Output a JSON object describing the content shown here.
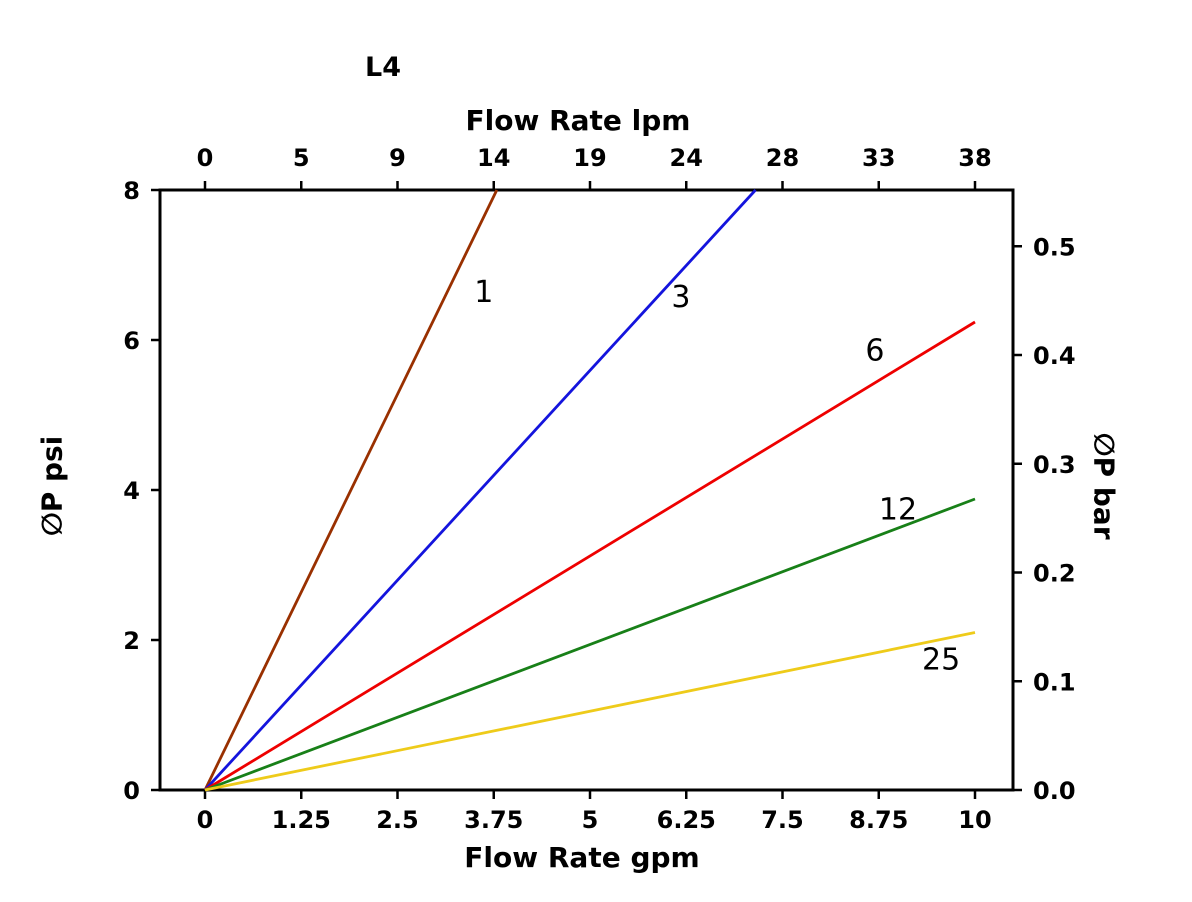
{
  "page": {
    "background": "#ffffff"
  },
  "chart_data": {
    "type": "line",
    "title": "L4",
    "grid": false,
    "legend": "none",
    "top_axis": {
      "label": "Flow Rate lpm",
      "labels": [
        "0",
        "5",
        "9",
        "14",
        "19",
        "24",
        "28",
        "33",
        "38"
      ]
    },
    "bottom_axis": {
      "label": "Flow Rate gpm",
      "ticks": [
        0,
        1.25,
        2.5,
        3.75,
        5,
        6.25,
        7.5,
        8.75,
        10
      ],
      "labels": [
        "0",
        "1.25",
        "2.5",
        "3.75",
        "5",
        "6.25",
        "7.5",
        "8.75",
        "10"
      ],
      "range": [
        0,
        10
      ]
    },
    "left_axis": {
      "label": "∅P psi",
      "ticks": [
        0,
        2,
        4,
        6,
        8
      ],
      "labels": [
        "0",
        "2",
        "4",
        "6",
        "8"
      ],
      "range": [
        0,
        8
      ]
    },
    "right_axis": {
      "label": "∅P bar",
      "ticks": [
        0,
        0.1,
        0.2,
        0.3,
        0.4,
        0.5
      ],
      "labels": [
        "0.0",
        "0.1",
        "0.2",
        "0.3",
        "0.4",
        "0.5"
      ],
      "psi_per_bar": 14.5
    },
    "series": [
      {
        "name": "1",
        "color": "#993000",
        "points": [
          [
            0,
            0
          ],
          [
            3.79,
            8
          ]
        ],
        "label_pos": [
          3.62,
          6.51
        ]
      },
      {
        "name": "3",
        "color": "#1414dd",
        "points": [
          [
            0,
            0
          ],
          [
            7.15,
            8
          ]
        ],
        "label_pos": [
          6.18,
          6.44
        ]
      },
      {
        "name": "6",
        "color": "#ee0000",
        "points": [
          [
            0,
            0
          ],
          [
            10,
            6.24
          ]
        ],
        "label_pos": [
          8.7,
          5.73
        ]
      },
      {
        "name": "12",
        "color": "#188018",
        "points": [
          [
            0,
            0
          ],
          [
            10,
            3.88
          ]
        ],
        "label_pos": [
          9.0,
          3.61
        ]
      },
      {
        "name": "25",
        "color": "#eecb1a",
        "points": [
          [
            0,
            0
          ],
          [
            10,
            2.1
          ]
        ],
        "label_pos": [
          9.56,
          1.61
        ]
      }
    ]
  }
}
